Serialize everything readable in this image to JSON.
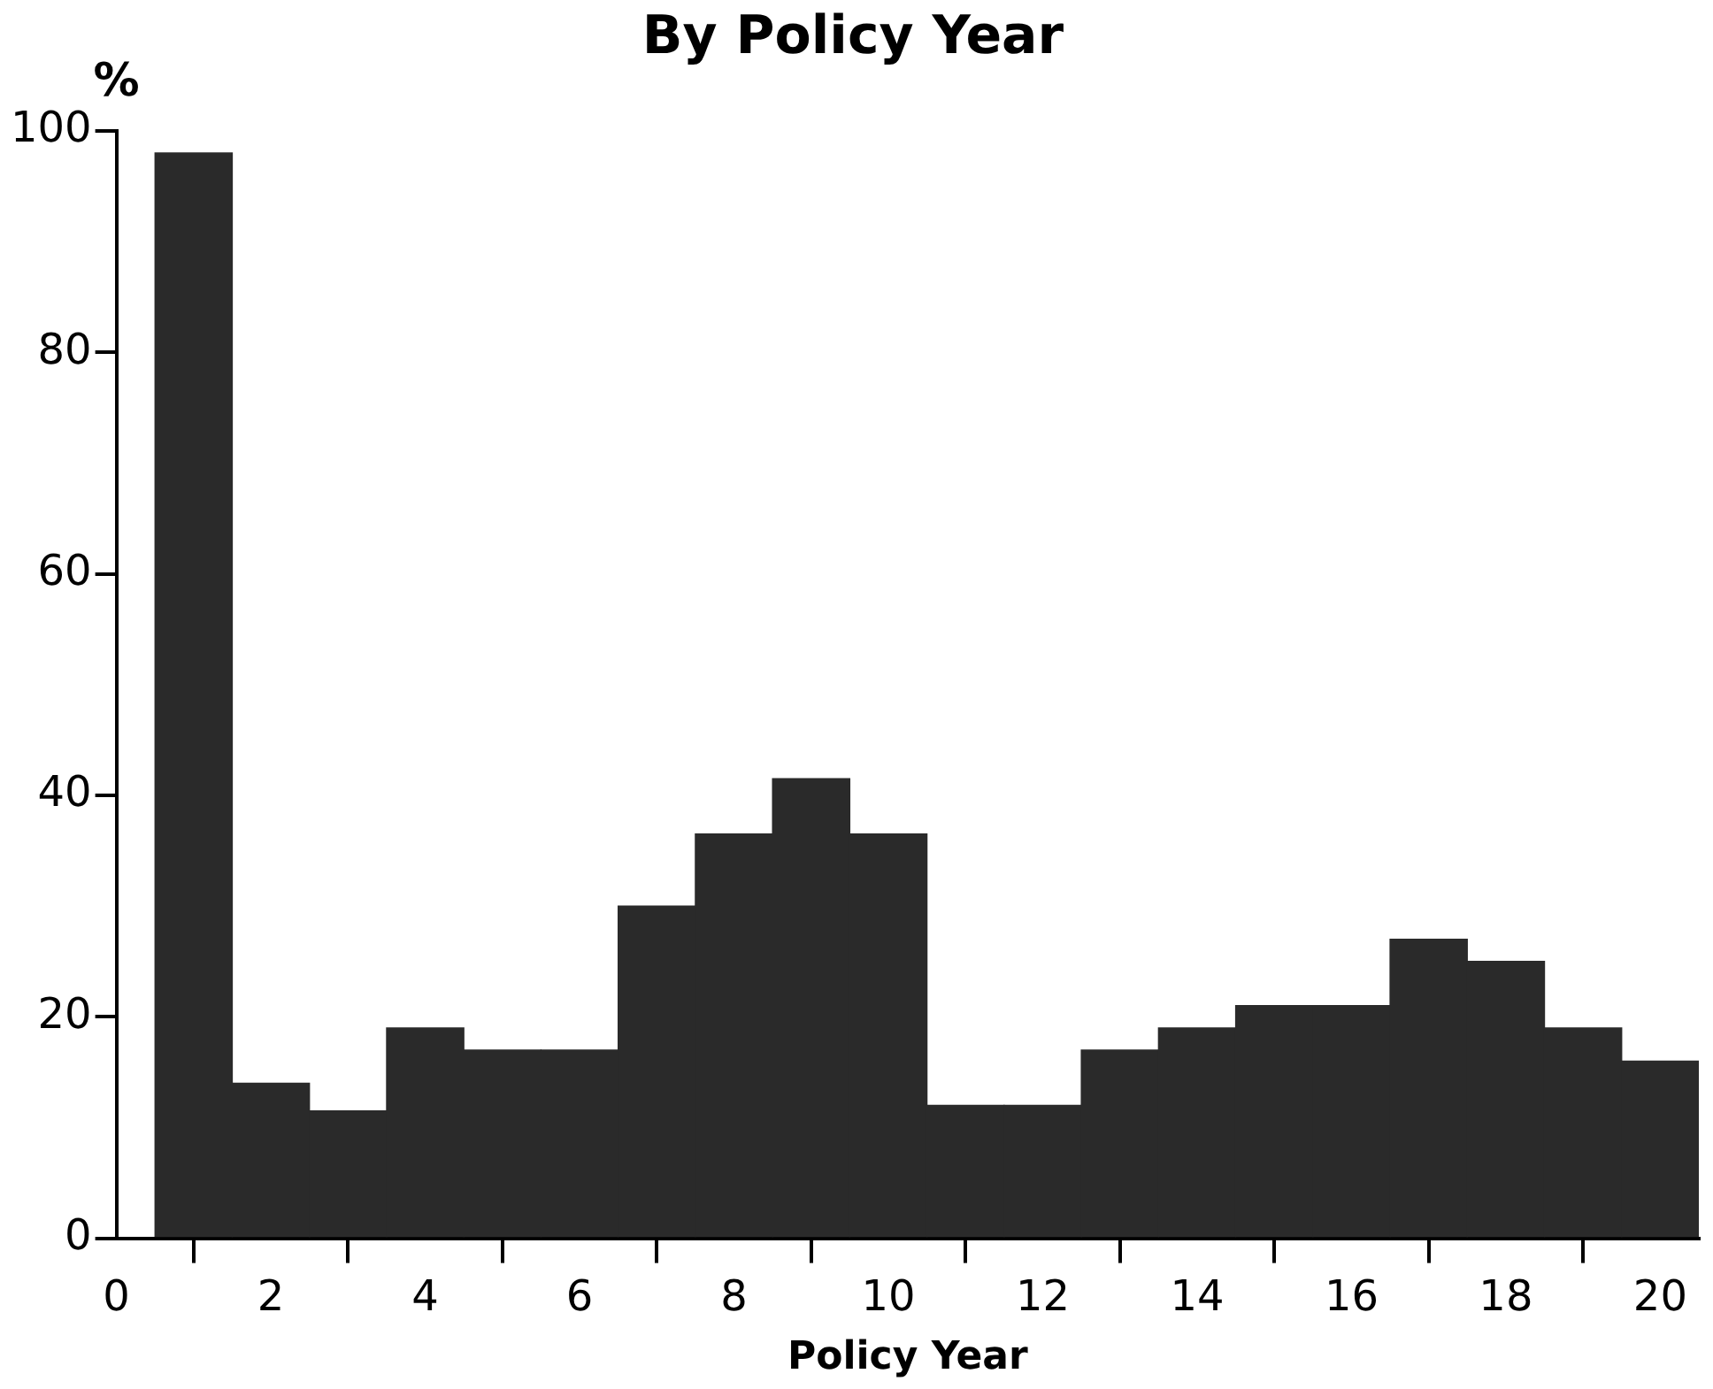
{
  "chart_data": {
    "type": "histogram",
    "title": "By Policy Year",
    "xlabel": "Policy Year",
    "ylabel": "%",
    "bins": [
      0.5,
      1.5,
      2.5,
      3.5,
      4.5,
      5.5,
      6.5,
      7.5,
      8.5,
      9.5,
      10.5,
      11.5,
      12.5,
      13.5,
      14.5,
      15.5,
      16.5,
      17.5,
      18.5,
      19.5,
      20.5
    ],
    "values": [
      98,
      14,
      11.5,
      19,
      17,
      17,
      30,
      36.5,
      41.5,
      36.5,
      12,
      12,
      17,
      19,
      21,
      21,
      27,
      25,
      19,
      16
    ],
    "color": "#2a2a2a",
    "xlim": [
      0,
      20.5
    ],
    "xticks": [
      0,
      2,
      4,
      6,
      8,
      10,
      12,
      14,
      16,
      18,
      20
    ],
    "ylim": [
      0,
      100
    ],
    "yticks": [
      0,
      20,
      40,
      60,
      80,
      100
    ],
    "grid": false,
    "legend": false
  }
}
